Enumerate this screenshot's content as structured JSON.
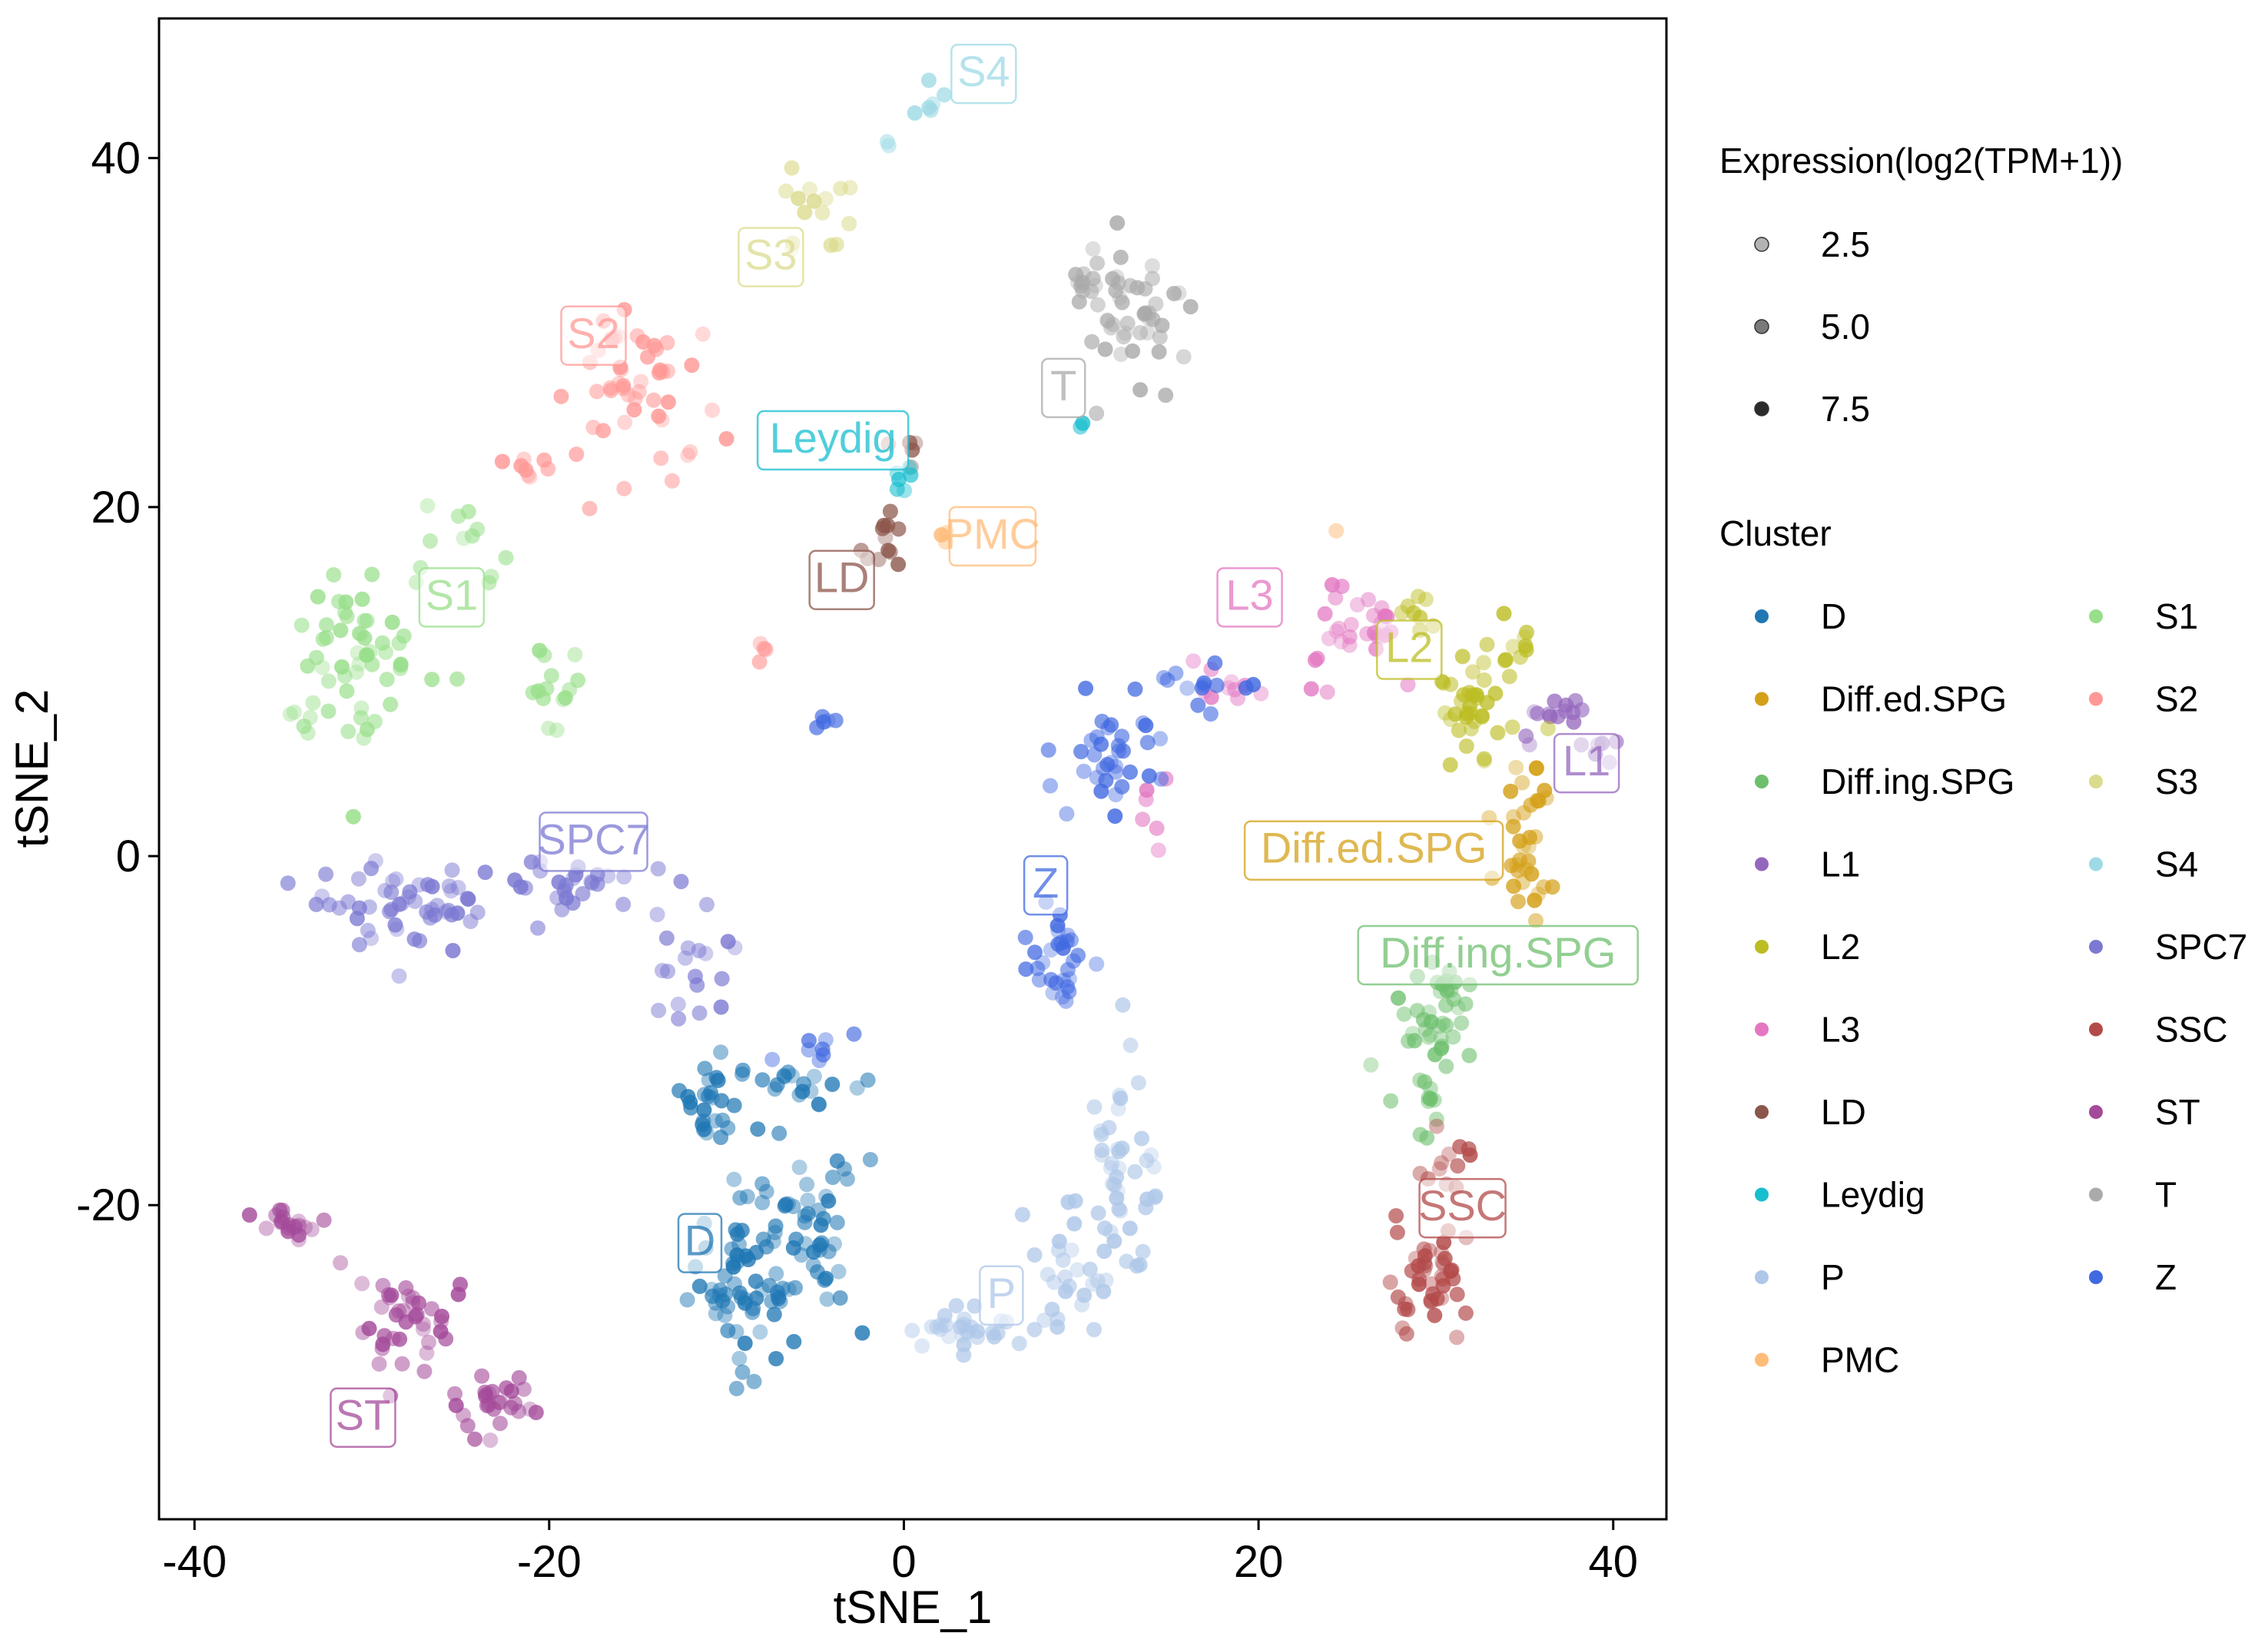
{
  "chart_data": {
    "type": "scatter",
    "xlabel": "tSNE_1",
    "ylabel": "tSNE_2",
    "xlim": [
      -42,
      43
    ],
    "ylim": [
      -38,
      48
    ],
    "x_ticks": [
      -40,
      -20,
      0,
      20,
      40
    ],
    "y_ticks": [
      -20,
      0,
      20,
      40
    ],
    "x_tick_labels": [
      "-40",
      "-20",
      "0",
      "20",
      "40"
    ],
    "y_tick_labels": [
      "-20",
      "0",
      "20",
      "40"
    ],
    "grid": false,
    "legend_position": "right",
    "size_legend": {
      "title": "Expression(log2(TPM+1))",
      "entries": [
        {
          "label": "2.5",
          "value": 2.5,
          "color": "#b3b3b3"
        },
        {
          "label": "5.0",
          "value": 5.0,
          "color": "#7a7a7a"
        },
        {
          "label": "7.5",
          "value": 7.5,
          "color": "#2b2b2b"
        }
      ]
    },
    "color_legend_title": "Cluster",
    "clusters": [
      {
        "name": "D",
        "color": "#1f77b4",
        "label_x": -11.5,
        "label_y": -22,
        "blobs": [
          [
            -9,
            -24,
            2.6,
            4.5,
            70
          ],
          [
            -5,
            -22,
            2.2,
            4,
            40
          ],
          [
            -11,
            -14,
            1.6,
            2.5,
            25
          ],
          [
            -6,
            -13,
            2.5,
            1.2,
            20
          ]
        ]
      },
      {
        "name": "Diff.ed.SPG",
        "color": "#d4a017",
        "label_x": 26.5,
        "label_y": 0.5,
        "blobs": [
          [
            35,
            -0.5,
            1.3,
            2.2,
            25
          ],
          [
            35.5,
            4,
            1.2,
            2,
            10
          ]
        ]
      },
      {
        "name": "Diff.ing.SPG",
        "color": "#6dbf6d",
        "label_x": 33.5,
        "label_y": -5.5,
        "blobs": [
          [
            30,
            -9,
            1.8,
            3.2,
            40
          ],
          [
            29,
            -14,
            1.2,
            2,
            10
          ]
        ]
      },
      {
        "name": "L1",
        "color": "#9467bd",
        "label_x": 38.5,
        "label_y": 5.5,
        "blobs": [
          [
            36,
            8,
            1.6,
            1.6,
            14
          ],
          [
            39,
            6,
            1,
            1.4,
            6
          ]
        ]
      },
      {
        "name": "L2",
        "color": "#bcbd22",
        "label_x": 28.5,
        "label_y": 12,
        "blobs": [
          [
            32,
            8,
            2.2,
            3,
            35
          ],
          [
            29,
            14,
            1,
            1.2,
            8
          ],
          [
            34,
            12,
            1.2,
            1.5,
            10
          ]
        ]
      },
      {
        "name": "L3",
        "color": "#e377c2",
        "label_x": 19.5,
        "label_y": 15,
        "blobs": [
          [
            25,
            13,
            3.2,
            2,
            30
          ],
          [
            18,
            10,
            1.5,
            1.5,
            10
          ],
          [
            14,
            3,
            1,
            2,
            6
          ]
        ]
      },
      {
        "name": "LD",
        "color": "#8c564b",
        "label_x": -3.5,
        "label_y": 16,
        "blobs": [
          [
            -1,
            18,
            1.1,
            1.6,
            12
          ],
          [
            0.5,
            23,
            0.8,
            1,
            5
          ]
        ]
      },
      {
        "name": "Leydig",
        "color": "#17becf",
        "label_x": -4,
        "label_y": 24,
        "blobs": [
          [
            0,
            21.5,
            0.8,
            0.8,
            6
          ],
          [
            10,
            24.5,
            0.3,
            0.4,
            2
          ]
        ]
      },
      {
        "name": "P",
        "color": "#aec7e8",
        "label_x": 5.5,
        "label_y": -25,
        "blobs": [
          [
            12,
            -18,
            2.2,
            5,
            50
          ],
          [
            3,
            -27,
            3.5,
            1.5,
            30
          ],
          [
            9,
            -24,
            2.5,
            2.5,
            20
          ]
        ]
      },
      {
        "name": "PMC",
        "color": "#ffbb78",
        "label_x": 5,
        "label_y": 18.5,
        "blobs": [
          [
            2,
            18,
            0.6,
            0.6,
            3
          ],
          [
            24.5,
            18.5,
            0.2,
            0.2,
            1
          ]
        ]
      },
      {
        "name": "S1",
        "color": "#98df8a",
        "label_x": -25.5,
        "label_y": 15,
        "blobs": [
          [
            -31,
            11,
            3.5,
            5,
            60
          ],
          [
            -20,
            10,
            1.5,
            2.5,
            14
          ],
          [
            -25,
            19,
            2,
            2,
            10
          ]
        ]
      },
      {
        "name": "S2",
        "color": "#ff9896",
        "label_x": -17.5,
        "label_y": 30,
        "blobs": [
          [
            -15,
            27,
            4,
            3.5,
            50
          ],
          [
            -21,
            22,
            1.5,
            1.5,
            8
          ],
          [
            -8,
            12,
            0.5,
            0.8,
            4
          ]
        ]
      },
      {
        "name": "S3",
        "color": "#dbdb8d",
        "label_x": -7.5,
        "label_y": 34.5,
        "blobs": [
          [
            -5,
            37,
            1.8,
            2.5,
            15
          ]
        ]
      },
      {
        "name": "S4",
        "color": "#9edae5",
        "label_x": 4.5,
        "label_y": 45,
        "blobs": [
          [
            1.5,
            43.5,
            1,
            1,
            6
          ],
          [
            -1,
            41,
            0.3,
            0.3,
            2
          ]
        ]
      },
      {
        "name": "SPC7",
        "color": "#7b78d2",
        "label_x": -17.5,
        "label_y": 1,
        "blobs": [
          [
            -28,
            -3,
            5,
            2,
            55
          ],
          [
            -18,
            -1.5,
            4,
            1.8,
            25
          ],
          [
            -12,
            -6,
            2,
            2.5,
            20
          ]
        ]
      },
      {
        "name": "SSC",
        "color": "#b34a4a",
        "label_x": 31.5,
        "label_y": -20,
        "blobs": [
          [
            29.5,
            -24,
            1.7,
            3.5,
            45
          ],
          [
            31,
            -17.5,
            1,
            1.5,
            10
          ]
        ]
      },
      {
        "name": "ST",
        "color": "#a44a9a",
        "label_x": -30.5,
        "label_y": -32,
        "blobs": [
          [
            -28,
            -27,
            3,
            2.5,
            40
          ],
          [
            -34.5,
            -21,
            1.2,
            0.8,
            20
          ],
          [
            -23,
            -31.5,
            2.2,
            1.5,
            28
          ]
        ]
      },
      {
        "name": "T",
        "color": "#aaaaaa",
        "label_x": 9,
        "label_y": 27,
        "blobs": [
          [
            13,
            31,
            2.8,
            3.2,
            45
          ],
          [
            10,
            33,
            1,
            1.5,
            10
          ]
        ]
      },
      {
        "name": "Z",
        "color": "#4169e1",
        "label_x": 8,
        "label_y": -1.5,
        "blobs": [
          [
            9,
            -6,
            1.5,
            2.5,
            30
          ],
          [
            12,
            6,
            2.5,
            2.5,
            35
          ],
          [
            17,
            10,
            2.5,
            1.2,
            14
          ],
          [
            -4.5,
            7.5,
            0.5,
            0.5,
            5
          ],
          [
            -5,
            -11,
            2,
            0.8,
            8
          ]
        ]
      }
    ],
    "legend_columns": [
      [
        "D",
        "Diff.ed.SPG",
        "Diff.ing.SPG",
        "L1",
        "L2",
        "L3",
        "LD",
        "Leydig",
        "P",
        "PMC"
      ],
      [
        "S1",
        "S2",
        "S3",
        "S4",
        "SPC7",
        "SSC",
        "ST",
        "T",
        "Z"
      ]
    ]
  }
}
